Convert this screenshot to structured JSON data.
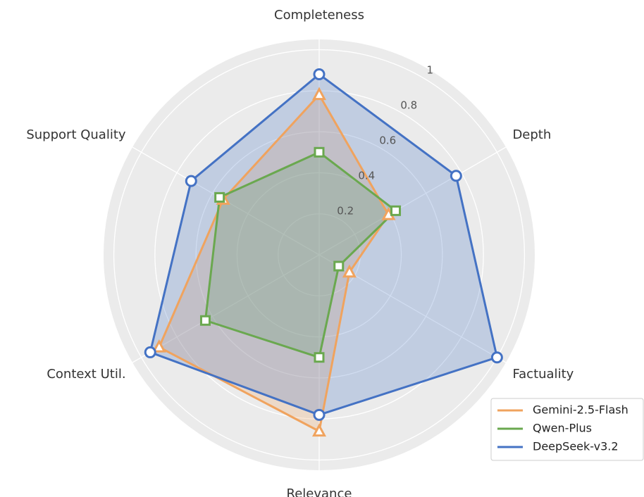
{
  "chart_data": {
    "type": "radar",
    "categories": [
      "Completeness",
      "Depth",
      "Factuality",
      "Relevance",
      "Context Util.",
      "Support Quality"
    ],
    "series": [
      {
        "name": "Gemini-2.5-Flash",
        "color": "#f0a35e",
        "marker": "triangle",
        "values": [
          0.78,
          0.39,
          0.17,
          0.86,
          0.9,
          0.54
        ]
      },
      {
        "name": "Qwen-Plus",
        "color": "#6aa84f",
        "marker": "square",
        "values": [
          0.5,
          0.43,
          0.11,
          0.5,
          0.64,
          0.56
        ]
      },
      {
        "name": "DeepSeek-v3.2",
        "color": "#4472c4",
        "marker": "circle",
        "values": [
          0.88,
          0.77,
          1.0,
          0.78,
          0.95,
          0.72
        ]
      }
    ],
    "ylim": [
      0,
      1.05
    ],
    "yticks": [
      0.2,
      0.4,
      0.6,
      0.8,
      1.0
    ],
    "grid": true,
    "legend": "lower right"
  }
}
